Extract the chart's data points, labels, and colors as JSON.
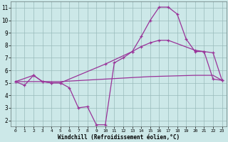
{
  "xlabel": "Windchill (Refroidissement éolien,°C)",
  "background_color": "#cce8e8",
  "grid_color": "#99bbbb",
  "line_color": "#993399",
  "xlim_min": -0.5,
  "xlim_max": 23.5,
  "ylim_min": 1.5,
  "ylim_max": 11.5,
  "yticks": [
    2,
    3,
    4,
    5,
    6,
    7,
    8,
    9,
    10,
    11
  ],
  "xticks": [
    0,
    1,
    2,
    3,
    4,
    5,
    6,
    7,
    8,
    9,
    10,
    11,
    12,
    13,
    14,
    15,
    16,
    17,
    18,
    19,
    20,
    21,
    22,
    23
  ],
  "line1_x": [
    0,
    1,
    2,
    3,
    4,
    5,
    6,
    7,
    8,
    9,
    10,
    11,
    12,
    13,
    14,
    15,
    16,
    17,
    18,
    19,
    20,
    21,
    22,
    23
  ],
  "line1_y": [
    5.1,
    4.8,
    5.6,
    5.1,
    5.0,
    5.0,
    4.6,
    3.0,
    3.1,
    1.65,
    1.65,
    6.6,
    7.0,
    7.5,
    8.7,
    10.0,
    11.05,
    11.05,
    10.5,
    8.5,
    7.5,
    7.5,
    5.3,
    5.2
  ],
  "line2_x": [
    0,
    2,
    3,
    4,
    5,
    10,
    13,
    14,
    15,
    16,
    17,
    20,
    21,
    22,
    23
  ],
  "line2_y": [
    5.1,
    5.6,
    5.1,
    5.0,
    5.0,
    6.5,
    7.5,
    7.9,
    8.2,
    8.4,
    8.4,
    7.6,
    7.5,
    7.4,
    5.2
  ],
  "line3_x": [
    0,
    5,
    10,
    15,
    20,
    21,
    22,
    23
  ],
  "line3_y": [
    5.1,
    5.1,
    5.3,
    5.5,
    5.6,
    5.6,
    5.6,
    5.2
  ]
}
